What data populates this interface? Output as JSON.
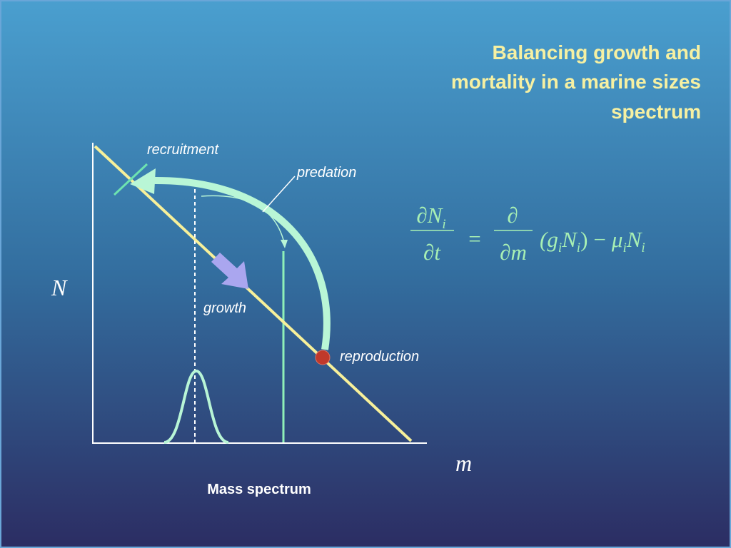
{
  "title": {
    "lines": [
      "Balancing  growth and",
      "mortality in a marine sizes",
      "spectrum"
    ]
  },
  "diagram": {
    "y_axis_label": "N",
    "x_axis_label": "m",
    "caption": "Mass spectrum",
    "labels": {
      "recruitment": "recruitment",
      "predation": "predation",
      "growth": "growth",
      "reproduction": "reproduction"
    }
  },
  "equation": {
    "lhs_numerator": "∂N",
    "lhs_numerator_sub": "i",
    "lhs_denominator": "∂t",
    "equals": "=",
    "rhs_numerator": "∂",
    "rhs_denominator": "∂m",
    "term_open": "(g",
    "term_g_sub": "i",
    "term_n": "N",
    "term_n_sub": "i",
    "term_close": ")",
    "minus": "−",
    "mu": "μ",
    "mu_sub": "i",
    "last_n": "N",
    "last_n_sub": "i"
  }
}
